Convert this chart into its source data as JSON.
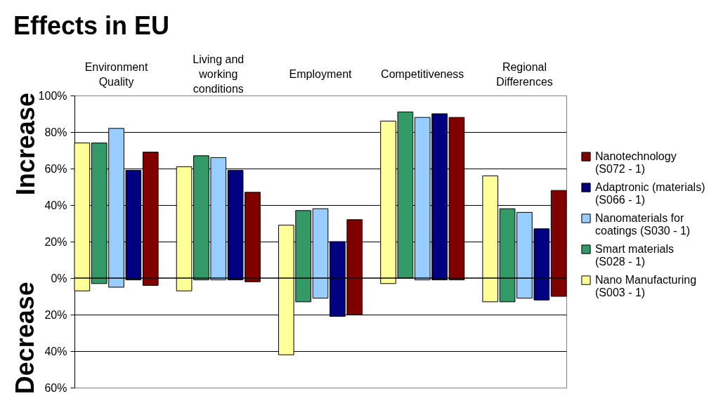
{
  "chart_data": {
    "type": "bar",
    "title": "Effects in EU",
    "ylabel": "Increase",
    "annotations": [
      "Decrease"
    ],
    "categories": [
      "Environment Quality",
      "Living and working conditions",
      "Employment",
      "Competitiveness",
      "Regional Differences"
    ],
    "series": [
      {
        "name": "Nano Manufacturing (S003 - 1)",
        "color": "#ffff99",
        "base": [
          -7,
          -7,
          -42,
          -3,
          -13
        ],
        "values": [
          81,
          68,
          71,
          89,
          69
        ]
      },
      {
        "name": "Smart materials (S028 - 1)",
        "color": "#339966",
        "base": [
          -3,
          -1,
          -13,
          0,
          -13
        ],
        "values": [
          77,
          68,
          50,
          91,
          51
        ]
      },
      {
        "name": "Nanomaterials for coatings (S030 - 1)",
        "color": "#99ccff",
        "base": [
          -5,
          -1,
          -11,
          -1,
          -11
        ],
        "values": [
          87,
          67,
          49,
          89,
          47
        ]
      },
      {
        "name": "Adaptronic (materials) (S066 - 1)",
        "color": "#000080",
        "base": [
          -1,
          -1,
          -21,
          -1,
          -12
        ],
        "values": [
          60,
          60,
          41,
          91,
          39
        ]
      },
      {
        "name": "Nanotechnology (S072 - 1)",
        "color": "#800000",
        "base": [
          -4,
          -2,
          -20,
          -1,
          -10
        ],
        "values": [
          73,
          49,
          52,
          89,
          58
        ]
      }
    ],
    "ylim": [
      -60,
      100
    ],
    "yticks": [
      {
        "value": -60,
        "label": "60%"
      },
      {
        "value": -40,
        "label": "40%"
      },
      {
        "value": -20,
        "label": "20%"
      },
      {
        "value": 0,
        "label": "0%"
      },
      {
        "value": 20,
        "label": "20%"
      },
      {
        "value": 40,
        "label": "40%"
      },
      {
        "value": 60,
        "label": "60%"
      },
      {
        "value": 80,
        "label": "80%"
      },
      {
        "value": 100,
        "label": "100%"
      }
    ],
    "ref_lines": [
      {
        "axis": "y",
        "value": 0,
        "color": "#000000"
      }
    ],
    "grid": "y",
    "legend": "right"
  }
}
